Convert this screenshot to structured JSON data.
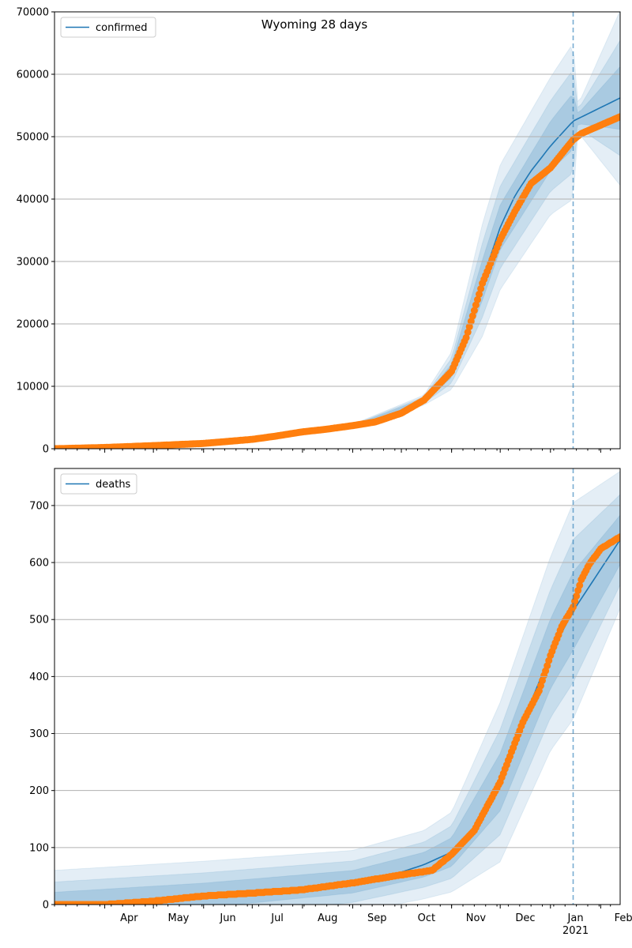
{
  "chart_data": [
    {
      "type": "line",
      "title": "Wyoming 28 days",
      "xlabel": "",
      "ylabel": "",
      "ylim": [
        0,
        70000
      ],
      "yticks": [
        "0",
        "10000",
        "20000",
        "30000",
        "40000",
        "50000",
        "60000",
        "70000"
      ],
      "xlim": [
        "2020-03-01",
        "2021-02-13"
      ],
      "xticks": [
        "Apr",
        "May",
        "Jun",
        "Jul",
        "Aug",
        "Sep",
        "Oct",
        "Nov",
        "Dec",
        "Jan",
        "Feb"
      ],
      "xtick_year": "2021",
      "grid": "horizontal",
      "legend_position": "top-left",
      "forecast_start": "2021-01-15",
      "series": [
        {
          "name": "confirmed",
          "kind": "model-line",
          "color": "#1f77b4",
          "points": [
            [
              "2020-03-01",
              0
            ],
            [
              "2020-04-01",
              200
            ],
            [
              "2020-05-01",
              520
            ],
            [
              "2020-06-01",
              850
            ],
            [
              "2020-07-01",
              1400
            ],
            [
              "2020-07-15",
              1900
            ],
            [
              "2020-08-01",
              2600
            ],
            [
              "2020-08-15",
              3000
            ],
            [
              "2020-09-01",
              3600
            ],
            [
              "2020-09-15",
              4200
            ],
            [
              "2020-10-01",
              5600
            ],
            [
              "2020-10-15",
              7800
            ],
            [
              "2020-11-01",
              12500
            ],
            [
              "2020-11-10",
              18500
            ],
            [
              "2020-11-20",
              27000
            ],
            [
              "2020-12-01",
              35500
            ],
            [
              "2020-12-10",
              40500
            ],
            [
              "2020-12-20",
              44500
            ],
            [
              "2021-01-01",
              48500
            ],
            [
              "2021-01-15",
              52500
            ],
            [
              "2021-02-13",
              56200
            ]
          ]
        },
        {
          "kind": "observed",
          "color": "#ff7f0e",
          "points": [
            [
              "2020-03-01",
              0
            ],
            [
              "2020-04-01",
              200
            ],
            [
              "2020-05-01",
              500
            ],
            [
              "2020-06-01",
              850
            ],
            [
              "2020-07-01",
              1500
            ],
            [
              "2020-07-15",
              2000
            ],
            [
              "2020-08-01",
              2700
            ],
            [
              "2020-08-15",
              3100
            ],
            [
              "2020-09-01",
              3700
            ],
            [
              "2020-09-15",
              4300
            ],
            [
              "2020-10-01",
              5700
            ],
            [
              "2020-10-15",
              7800
            ],
            [
              "2020-11-01",
              12400
            ],
            [
              "2020-11-10",
              17800
            ],
            [
              "2020-11-20",
              26500
            ],
            [
              "2020-12-01",
              33500
            ],
            [
              "2020-12-10",
              38000
            ],
            [
              "2020-12-20",
              42500
            ],
            [
              "2021-01-01",
              45000
            ],
            [
              "2021-01-15",
              49500
            ],
            [
              "2021-01-20",
              50500
            ],
            [
              "2021-02-13",
              53200
            ]
          ]
        }
      ],
      "bands_center": [
        [
          "2020-03-01",
          0
        ],
        [
          "2020-06-01",
          850
        ],
        [
          "2020-09-01",
          3600
        ],
        [
          "2020-10-15",
          7800
        ],
        [
          "2020-11-01",
          12500
        ],
        [
          "2020-11-20",
          27000
        ],
        [
          "2020-12-01",
          35500
        ],
        [
          "2021-01-01",
          48500
        ],
        [
          "2021-01-15",
          52500
        ],
        [
          "2021-02-13",
          56200
        ]
      ],
      "bands_halfwidth": [
        [
          "2020-03-01",
          50
        ],
        [
          "2020-06-01",
          100
        ],
        [
          "2020-09-01",
          300
        ],
        [
          "2020-10-15",
          800
        ],
        [
          "2020-11-01",
          3000
        ],
        [
          "2020-11-20",
          9000
        ],
        [
          "2020-12-01",
          10000
        ],
        [
          "2021-01-01",
          11000
        ],
        [
          "2021-01-15",
          12500
        ],
        [
          "2021-01-18",
          2200
        ],
        [
          "2021-02-13",
          14000
        ]
      ]
    },
    {
      "type": "line",
      "xlabel": "",
      "ylabel": "",
      "ylim": [
        0,
        765
      ],
      "yticks": [
        "0",
        "100",
        "200",
        "300",
        "400",
        "500",
        "600",
        "700"
      ],
      "xlim": [
        "2020-03-01",
        "2021-02-13"
      ],
      "xticks": [
        "Apr",
        "May",
        "Jun",
        "Jul",
        "Aug",
        "Sep",
        "Oct",
        "Nov",
        "Dec",
        "Jan",
        "Feb"
      ],
      "xtick_year": "2021",
      "grid": "horizontal",
      "legend_position": "top-left",
      "forecast_start": "2021-01-15",
      "series": [
        {
          "name": "deaths",
          "kind": "model-line",
          "color": "#1f77b4",
          "points": [
            [
              "2020-03-01",
              0
            ],
            [
              "2020-04-01",
              1
            ],
            [
              "2020-05-01",
              6
            ],
            [
              "2020-06-01",
              16
            ],
            [
              "2020-07-01",
              21
            ],
            [
              "2020-08-01",
              27
            ],
            [
              "2020-09-01",
              40
            ],
            [
              "2020-10-01",
              57
            ],
            [
              "2020-10-15",
              70
            ],
            [
              "2020-11-01",
              92
            ],
            [
              "2020-11-15",
              128
            ],
            [
              "2020-12-01",
              215
            ],
            [
              "2020-12-15",
              320
            ],
            [
              "2021-01-01",
              440
            ],
            [
              "2021-01-15",
              515
            ],
            [
              "2021-02-13",
              640
            ]
          ]
        },
        {
          "kind": "observed",
          "color": "#ff7f0e",
          "points": [
            [
              "2020-03-01",
              0
            ],
            [
              "2020-04-01",
              0
            ],
            [
              "2020-05-01",
              6
            ],
            [
              "2020-06-01",
              15
            ],
            [
              "2020-07-01",
              20
            ],
            [
              "2020-08-01",
              26
            ],
            [
              "2020-09-01",
              38
            ],
            [
              "2020-10-01",
              52
            ],
            [
              "2020-10-20",
              60
            ],
            [
              "2020-11-01",
              88
            ],
            [
              "2020-11-15",
              130
            ],
            [
              "2020-12-01",
              215
            ],
            [
              "2020-12-15",
              320
            ],
            [
              "2020-12-25",
              375
            ],
            [
              "2021-01-01",
              437
            ],
            [
              "2021-01-08",
              488
            ],
            [
              "2021-01-15",
              522
            ],
            [
              "2021-01-20",
              570
            ],
            [
              "2021-01-25",
              597
            ],
            [
              "2021-02-01",
              624
            ],
            [
              "2021-02-13",
              645
            ]
          ]
        }
      ],
      "bands_center": [
        [
          "2020-03-01",
          0
        ],
        [
          "2020-06-01",
          16
        ],
        [
          "2020-09-01",
          40
        ],
        [
          "2020-10-15",
          70
        ],
        [
          "2020-11-01",
          92
        ],
        [
          "2020-12-01",
          215
        ],
        [
          "2021-01-01",
          440
        ],
        [
          "2021-01-15",
          515
        ],
        [
          "2021-02-13",
          640
        ]
      ],
      "bands_halfwidth": [
        [
          "2020-03-01",
          60
        ],
        [
          "2020-06-01",
          60
        ],
        [
          "2020-09-01",
          55
        ],
        [
          "2020-10-15",
          60
        ],
        [
          "2020-11-01",
          70
        ],
        [
          "2020-12-01",
          140
        ],
        [
          "2021-01-01",
          170
        ],
        [
          "2021-01-15",
          190
        ],
        [
          "2021-02-13",
          120
        ]
      ]
    }
  ],
  "colors": {
    "model": "#1f77b4",
    "observed": "#ff7f0e",
    "band": "#1f77b4",
    "grid": "#b0b0b0",
    "forecast_line": "#1f77b4"
  }
}
